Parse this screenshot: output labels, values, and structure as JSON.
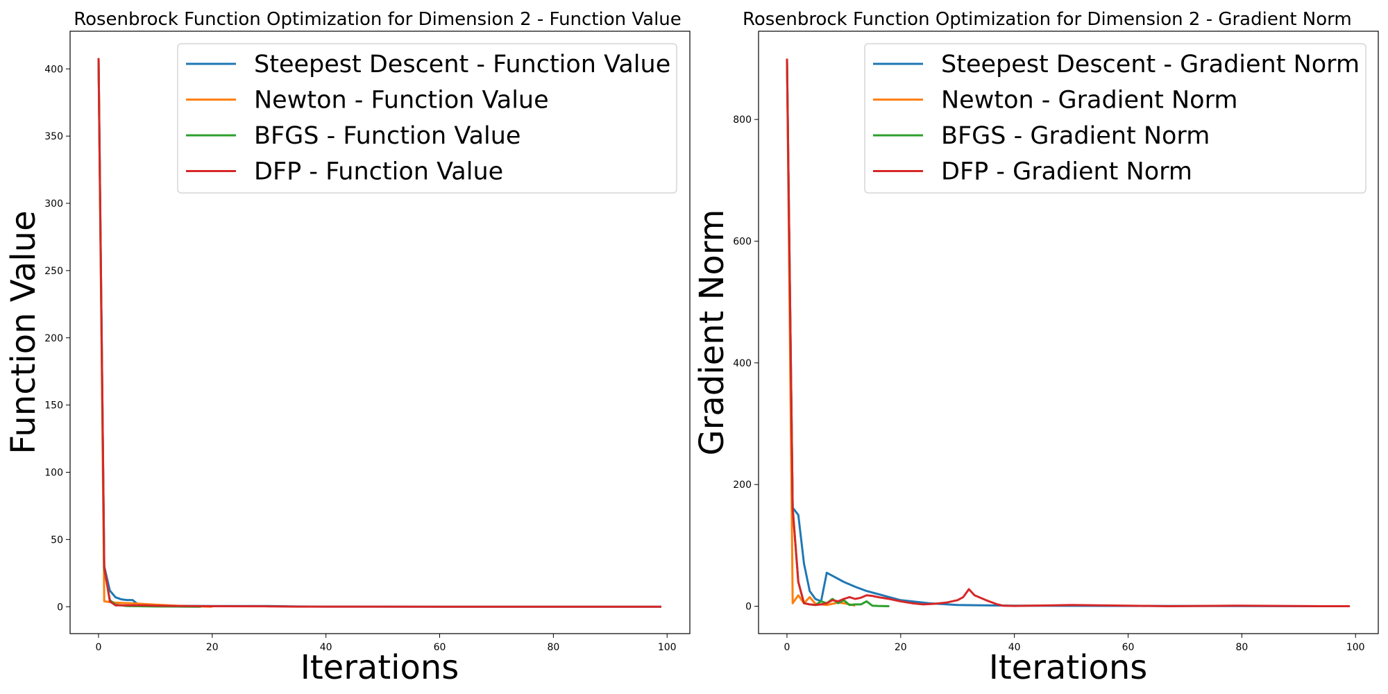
{
  "chart_data": [
    {
      "type": "line",
      "title": "Rosenbrock Function Optimization for Dimension 2 - Function Value",
      "xlabel": "Iterations",
      "ylabel": "Function Value",
      "xlim": [
        -5,
        104
      ],
      "ylim": [
        -20,
        428
      ],
      "xticks": [
        0,
        20,
        40,
        60,
        80,
        100
      ],
      "yticks": [
        0,
        50,
        100,
        150,
        200,
        250,
        300,
        350,
        400
      ],
      "grid": false,
      "legend_position": "top-right",
      "series": [
        {
          "name": "Steepest Descent - Function Value",
          "color": "#1f77b4",
          "x": [
            0,
            1,
            2,
            3,
            4,
            5,
            6,
            7,
            10,
            15,
            20,
            30,
            35,
            40,
            60,
            80,
            99
          ],
          "y": [
            408,
            30,
            12,
            7,
            5.5,
            5,
            5,
            1.5,
            0.8,
            0.6,
            0.5,
            0.5,
            0.2,
            0.1,
            0,
            0,
            0
          ]
        },
        {
          "name": "Newton - Function Value",
          "color": "#ff7f0e",
          "x": [
            0,
            1,
            2,
            3,
            6,
            10,
            15,
            20
          ],
          "y": [
            408,
            4,
            3.5,
            3,
            2.5,
            1.5,
            0.5,
            0
          ]
        },
        {
          "name": "BFGS - Function Value",
          "color": "#2ca02c",
          "x": [
            0,
            1,
            2,
            3,
            5,
            10,
            15,
            18
          ],
          "y": [
            408,
            28,
            5,
            1.5,
            0.5,
            0.2,
            0.1,
            0
          ]
        },
        {
          "name": "DFP - Function Value",
          "color": "#d62728",
          "x": [
            0,
            1,
            2,
            3,
            5,
            8,
            10,
            15,
            20,
            30,
            35,
            50,
            70,
            99
          ],
          "y": [
            408,
            30,
            4,
            1,
            1,
            1,
            0.8,
            0.5,
            0.4,
            0.3,
            0.1,
            0.1,
            0,
            0
          ]
        }
      ]
    },
    {
      "type": "line",
      "title": "Rosenbrock Function Optimization for Dimension 2 - Gradient Norm",
      "xlabel": "Iterations",
      "ylabel": "Gradient Norm",
      "xlim": [
        -5,
        104
      ],
      "ylim": [
        -45,
        945
      ],
      "xticks": [
        0,
        20,
        40,
        60,
        80,
        100
      ],
      "yticks": [
        0,
        200,
        400,
        600,
        800
      ],
      "grid": false,
      "legend_position": "top-right",
      "series": [
        {
          "name": "Steepest Descent - Gradient Norm",
          "color": "#1f77b4",
          "x": [
            0,
            1,
            2,
            3,
            4,
            5,
            6,
            7,
            8,
            10,
            12,
            14,
            16,
            18,
            20,
            25,
            30,
            40,
            60,
            99
          ],
          "y": [
            900,
            162,
            150,
            70,
            25,
            12,
            8,
            55,
            50,
            40,
            32,
            25,
            20,
            15,
            10,
            5,
            2,
            1,
            0.5,
            0
          ]
        },
        {
          "name": "Newton - Gradient Norm",
          "color": "#ff7f0e",
          "x": [
            0,
            1,
            2,
            3,
            4,
            5,
            6,
            7,
            8,
            9,
            10,
            11,
            12
          ],
          "y": [
            900,
            5,
            18,
            5,
            15,
            4,
            3,
            2,
            4,
            6,
            5,
            3,
            1
          ]
        },
        {
          "name": "BFGS - Gradient Norm",
          "color": "#2ca02c",
          "x": [
            0,
            1,
            2,
            3,
            4,
            5,
            6,
            7,
            8,
            9,
            10,
            11,
            12,
            13,
            14,
            15,
            16,
            18
          ],
          "y": [
            900,
            162,
            40,
            5,
            3,
            2,
            8,
            5,
            12,
            5,
            10,
            2,
            3,
            3,
            8,
            1,
            0.5,
            0
          ]
        },
        {
          "name": "DFP - Gradient Norm",
          "color": "#d62728",
          "x": [
            0,
            1,
            2,
            3,
            4,
            5,
            6,
            7,
            8,
            9,
            10,
            11,
            12,
            13,
            14,
            15,
            16,
            18,
            20,
            22,
            24,
            26,
            28,
            30,
            31,
            32,
            33,
            35,
            37,
            38,
            40,
            50,
            60,
            67,
            80,
            95,
            99
          ],
          "y": [
            900,
            160,
            40,
            5,
            3,
            2,
            3,
            5,
            10,
            8,
            12,
            15,
            12,
            14,
            18,
            17,
            15,
            12,
            8,
            5,
            3,
            4,
            6,
            10,
            15,
            28,
            18,
            10,
            3,
            1,
            0.5,
            2,
            1,
            0,
            1,
            0,
            0
          ]
        }
      ]
    }
  ]
}
